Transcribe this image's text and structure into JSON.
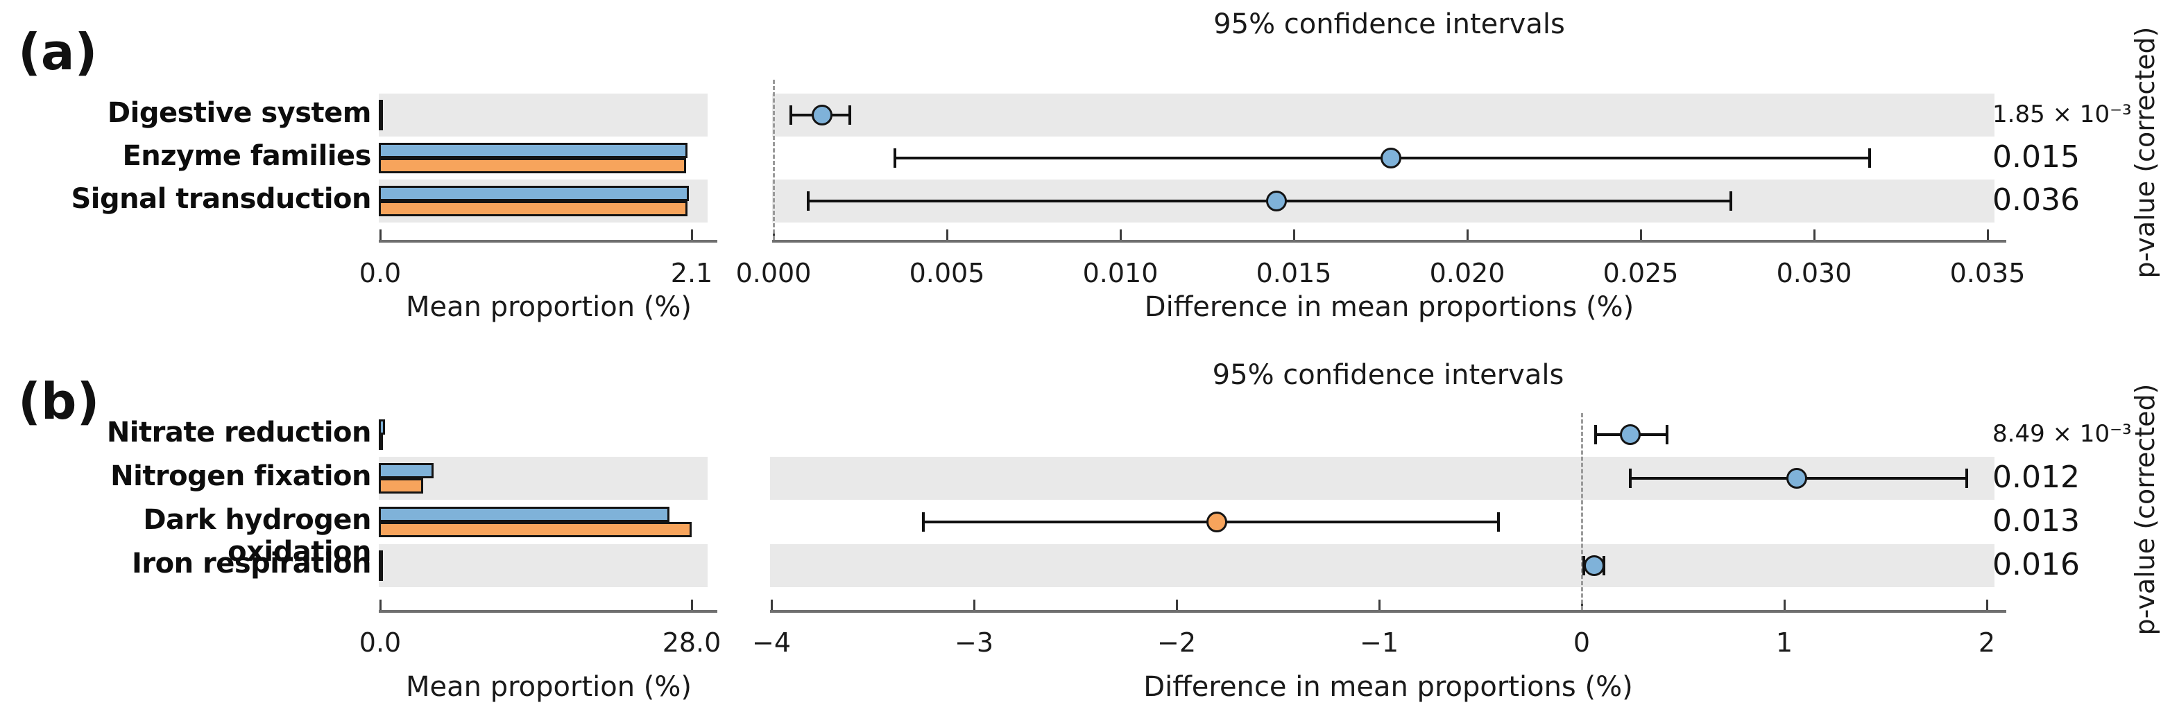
{
  "figure_type": "stamp-extended-error-bar",
  "colors": {
    "group_blue": "#7FB2D9",
    "group_orange": "#F7A45C",
    "row_band": "#E9E9E9",
    "error_bar": "#101010",
    "axis": "#6F6F6F",
    "zero_line_dash": "#9A9A9A"
  },
  "chart_data": [
    {
      "type": "extended_error_bar",
      "panel_label": "(a)",
      "categories": [
        "Digestive system",
        "Enzyme families",
        "Signal transduction"
      ],
      "shaded_rows": [
        0,
        2
      ],
      "mean_proportions": {
        "xlabel": "Mean proportion (%)",
        "xlim": [
          0.0,
          2.1
        ],
        "tick_values": [
          0.0,
          2.1
        ],
        "tick_labels": [
          "0.0",
          "2.1"
        ],
        "series": [
          {
            "name": "blue",
            "color": "#7FB2D9",
            "values": [
              0.02,
              2.08,
              2.09
            ]
          },
          {
            "name": "orange",
            "color": "#F7A45C",
            "values": [
              0.02,
              2.07,
              2.08
            ]
          }
        ]
      },
      "difference": {
        "title": "95% confidence intervals",
        "xlabel": "Difference in mean proportions (%)",
        "xlim": [
          0.0,
          0.0355
        ],
        "zero_line": 0.0,
        "tick_values": [
          0.0,
          0.005,
          0.01,
          0.015,
          0.02,
          0.025,
          0.03,
          0.035
        ],
        "tick_labels": [
          "0.000",
          "0.005",
          "0.010",
          "0.015",
          "0.020",
          "0.025",
          "0.030",
          "0.035"
        ],
        "points": [
          {
            "value": 0.0014,
            "ci_low": 0.0005,
            "ci_high": 0.0022,
            "group": 0
          },
          {
            "value": 0.0178,
            "ci_low": 0.0035,
            "ci_high": 0.0316,
            "group": 0
          },
          {
            "value": 0.0145,
            "ci_low": 0.001,
            "ci_high": 0.0276,
            "group": 0
          }
        ]
      },
      "p_values": [
        "1.85 × 10⁻³",
        "0.015",
        "0.036"
      ],
      "p_axis_label": "p-value (corrected)"
    },
    {
      "type": "extended_error_bar",
      "panel_label": "(b)",
      "categories": [
        "Nitrate reduction",
        "Nitrogen fixation",
        "Dark hydrogen oxidation",
        "Iron respiration"
      ],
      "shaded_rows": [
        1,
        3
      ],
      "mean_proportions": {
        "xlabel": "Mean proportion (%)",
        "xlim": [
          0.0,
          28.0
        ],
        "tick_values": [
          0.0,
          28.0
        ],
        "tick_labels": [
          "0.0",
          "28.0"
        ],
        "series": [
          {
            "name": "blue",
            "color": "#7FB2D9",
            "values": [
              0.55,
              4.9,
              26.1,
              0.1
            ]
          },
          {
            "name": "orange",
            "color": "#F7A45C",
            "values": [
              0.15,
              4.0,
              28.1,
              0.1
            ]
          }
        ]
      },
      "difference": {
        "title": "95% confidence intervals",
        "xlabel": "Difference in mean proportions (%)",
        "xlim": [
          -4.0,
          2.09
        ],
        "zero_line": 0.0,
        "tick_values": [
          -4,
          -3,
          -2,
          -1,
          0,
          1,
          2
        ],
        "tick_labels": [
          "−4",
          "−3",
          "−2",
          "−1",
          "0",
          "1",
          "2"
        ],
        "points": [
          {
            "value": 0.24,
            "ci_low": 0.07,
            "ci_high": 0.42,
            "group": 0
          },
          {
            "value": 1.06,
            "ci_low": 0.24,
            "ci_high": 1.9,
            "group": 0
          },
          {
            "value": -1.8,
            "ci_low": -3.25,
            "ci_high": -0.41,
            "group": 1
          },
          {
            "value": 0.06,
            "ci_low": 0.01,
            "ci_high": 0.11,
            "group": 0
          }
        ]
      },
      "p_values": [
        "8.49 × 10⁻³",
        "0.012",
        "0.013",
        "0.016"
      ],
      "p_axis_label": "p-value (corrected)"
    }
  ]
}
